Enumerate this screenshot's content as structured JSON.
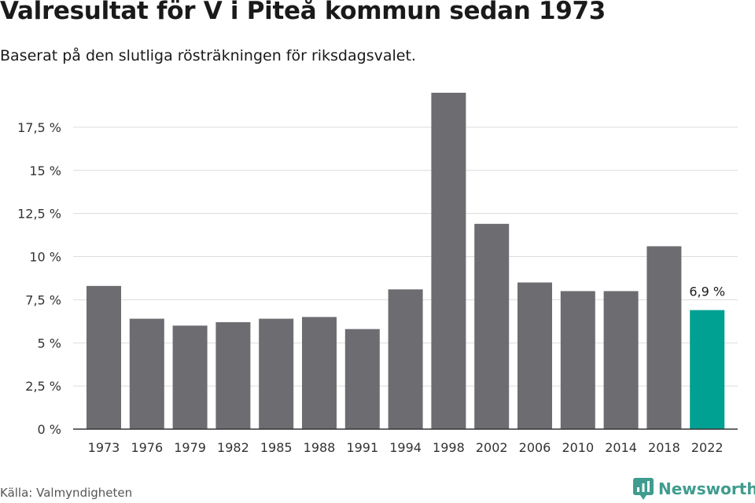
{
  "title": "Valresultat för V i Piteå kommun sedan 1973",
  "subtitle": "Baserat på den slutliga rösträkningen för riksdagsvalet.",
  "source": "Källa: Valmyndigheten",
  "brand": "Newsworthy",
  "colors": {
    "bar": "#6d6c71",
    "highlight": "#00a192",
    "grid": "#dcdcdc",
    "axis": "#333333",
    "brand": "#3f9c8e"
  },
  "icons": {
    "brand_logo": "newsworthy-logo-icon"
  },
  "chart_data": {
    "type": "bar",
    "categories": [
      "1973",
      "1976",
      "1979",
      "1982",
      "1985",
      "1988",
      "1991",
      "1994",
      "1998",
      "2002",
      "2006",
      "2010",
      "2014",
      "2018",
      "2022"
    ],
    "values": [
      8.3,
      6.4,
      6.0,
      6.2,
      6.4,
      6.5,
      5.8,
      8.1,
      19.5,
      11.9,
      8.5,
      8.0,
      8.0,
      10.6,
      6.9
    ],
    "ylim": [
      0,
      19.5
    ],
    "yticks": [
      0,
      2.5,
      5,
      7.5,
      10,
      12.5,
      15,
      17.5
    ],
    "ytick_labels": [
      "0 %",
      "2,5 %",
      "5 %",
      "7,5 %",
      "10 %",
      "12,5 %",
      "15 %",
      "17,5 %"
    ],
    "highlight_index": 14,
    "annotation": "6,9 %",
    "grid": true,
    "xlabel": "",
    "ylabel": ""
  }
}
